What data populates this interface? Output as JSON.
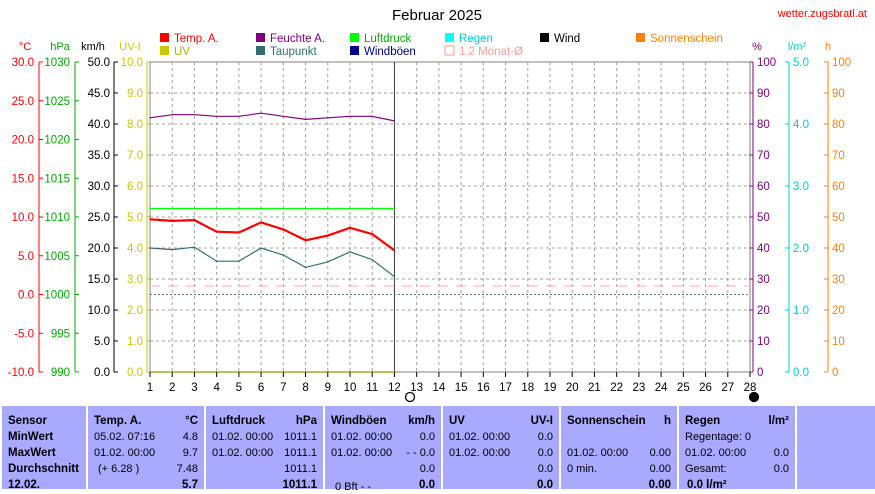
{
  "title": "Februar 2025",
  "source": "wetter.zugsbratl.at",
  "colors": {
    "temp": "#ff0000",
    "humidity": "#800080",
    "pressure": "#00ff00",
    "rain": "#00ffff",
    "wind": "#000000",
    "sunshine": "#ff8000",
    "uv": "#c8c800",
    "dewpoint": "#2f6f6f",
    "gusts": "#00008b",
    "avg": "#ffaaaa",
    "frame": "#808080",
    "panel": "#a9a9ff"
  },
  "legend": [
    {
      "label": "Temp. A.",
      "color": "#ff0000",
      "hollow": false
    },
    {
      "label": "Feuchte A.",
      "color": "#800080",
      "hollow": false
    },
    {
      "label": "Luftdruck",
      "color": "#00ff00",
      "hollow": false
    },
    {
      "label": "Regen",
      "color": "#00ffff",
      "hollow": false
    },
    {
      "label": "Wind",
      "color": "#000000",
      "hollow": false
    },
    {
      "label": "Sonnenschein",
      "color": "#ff8000",
      "hollow": false
    },
    {
      "label": "UV",
      "color": "#c8c800",
      "hollow": false
    },
    {
      "label": "Taupunkt",
      "color": "#2f6f6f",
      "hollow": false
    },
    {
      "label": "Windböen",
      "color": "#00008b",
      "hollow": false
    },
    {
      "label": "1.2 Monat-Ø",
      "color": "#ff9999",
      "hollow": true
    }
  ],
  "axes": {
    "left": [
      {
        "unit": "°C",
        "color": "#ff0000",
        "ticks": [
          "30.0",
          "25.0",
          "20.0",
          "15.0",
          "10.0",
          "5.0",
          "0.0",
          "-5.0",
          "-10.0"
        ]
      },
      {
        "unit": "hPa",
        "color": "#00aa00",
        "ticks": [
          "1030",
          "1025",
          "1020",
          "1015",
          "1010",
          "1005",
          "1000",
          "995",
          "990"
        ]
      },
      {
        "unit": "km/h",
        "color": "#000000",
        "ticks": [
          "50.0",
          "45.0",
          "40.0",
          "35.0",
          "30.0",
          "25.0",
          "20.0",
          "15.0",
          "10.0",
          "5.0",
          "0.0"
        ]
      },
      {
        "unit": "UV-I",
        "color": "#c8c800",
        "ticks": [
          "10.0",
          "9.0",
          "8.0",
          "7.0",
          "6.0",
          "5.0",
          "4.0",
          "3.0",
          "2.0",
          "1.0",
          "0.0"
        ]
      }
    ],
    "right": [
      {
        "unit": "%",
        "color": "#800080",
        "ticks": [
          "100",
          "90",
          "80",
          "70",
          "60",
          "50",
          "40",
          "30",
          "20",
          "10",
          "0"
        ]
      },
      {
        "unit": "l/m²",
        "color": "#00cccc",
        "ticks": [
          "5.0",
          "4.0",
          "3.0",
          "2.0",
          "1.0",
          "0.0"
        ]
      },
      {
        "unit": "h",
        "color": "#ff8000",
        "ticks": [
          "100",
          "90",
          "80",
          "70",
          "60",
          "50",
          "40",
          "30",
          "20",
          "10",
          "0"
        ]
      }
    ],
    "x_ticks": [
      "1",
      "2",
      "3",
      "4",
      "5",
      "6",
      "7",
      "8",
      "9",
      "10",
      "11",
      "12",
      "13",
      "14",
      "15",
      "16",
      "17",
      "18",
      "19",
      "20",
      "21",
      "22",
      "23",
      "24",
      "25",
      "26",
      "27",
      "28"
    ]
  },
  "chart_data": {
    "type": "line",
    "title": "Februar 2025",
    "x": [
      1,
      2,
      3,
      4,
      5,
      6,
      7,
      8,
      9,
      10,
      11,
      12
    ],
    "xlim": [
      1,
      28
    ],
    "series": [
      {
        "name": "Temp. A.",
        "unit": "°C",
        "axis": "left-temp",
        "ylim": [
          -10,
          30
        ],
        "values": [
          9.7,
          9.5,
          9.6,
          8.1,
          8.0,
          9.3,
          8.4,
          7.0,
          7.6,
          8.6,
          7.8,
          5.7
        ]
      },
      {
        "name": "Feuchte A.",
        "unit": "%",
        "axis": "right-humidity",
        "ylim": [
          0,
          100
        ],
        "values": [
          82,
          83,
          83,
          82.5,
          82.5,
          83.5,
          82.5,
          81.5,
          82,
          82.5,
          82.5,
          81
        ]
      },
      {
        "name": "Luftdruck",
        "unit": "hPa",
        "axis": "left-pressure",
        "ylim": [
          990,
          1030
        ],
        "values": [
          1011.1,
          1011.1,
          1011.1,
          1011.1,
          1011.1,
          1011.1,
          1011.1,
          1011.1,
          1011.1,
          1011.1,
          1011.1,
          1011.1
        ]
      },
      {
        "name": "Taupunkt",
        "unit": "°C",
        "axis": "left-temp",
        "ylim": [
          -10,
          30
        ],
        "values": [
          6.0,
          5.8,
          6.1,
          4.3,
          4.3,
          6.0,
          5.1,
          3.5,
          4.2,
          5.5,
          4.5,
          2.3
        ]
      },
      {
        "name": "1.2 Monat-Ø",
        "unit": "°C",
        "axis": "left-temp",
        "ylim": [
          -10,
          30
        ],
        "x": [
          1,
          28
        ],
        "values": [
          1.1,
          1.1
        ],
        "style": "dashed"
      },
      {
        "name": "Regen",
        "unit": "l/m²",
        "axis": "right-rain",
        "ylim": [
          0,
          5
        ],
        "values": [
          0,
          0,
          0,
          0,
          0,
          0,
          0,
          0,
          0,
          0,
          0,
          0
        ]
      },
      {
        "name": "Windböen",
        "unit": "km/h",
        "axis": "left-wind",
        "ylim": [
          0,
          50
        ],
        "values": [
          0,
          0,
          0,
          0,
          0,
          0,
          0,
          0,
          0,
          0,
          0,
          0
        ]
      },
      {
        "name": "UV",
        "unit": "UV-I",
        "axis": "left-uv",
        "ylim": [
          0,
          10
        ],
        "values": [
          0,
          0,
          0,
          0,
          0,
          0,
          0,
          0,
          0,
          0,
          0,
          0
        ]
      }
    ],
    "reference_lines": [
      {
        "value": 1000,
        "axis": "left-pressure",
        "style": "dashed",
        "color": "#4a7aa8"
      }
    ],
    "grid": true
  },
  "stats": {
    "sensor": {
      "header": "Sensor",
      "rows": [
        "MinWert",
        "MaxWert",
        "Durchschnitt",
        "12.02."
      ]
    },
    "temp": {
      "header": "Temp. A.",
      "unit": "°C",
      "min": {
        "date": "05.02.  07:16",
        "value": "4.8"
      },
      "max": {
        "date": "01.02.  00:00",
        "value": "9.7"
      },
      "avg": {
        "note": "(+ 6.28 )",
        "value": "7.48"
      },
      "current": "5.7"
    },
    "pressure": {
      "header": "Luftdruck",
      "unit": "hPa",
      "min": {
        "date": "01.02.  00:00",
        "value": "1011.1"
      },
      "max": {
        "date": "01.02.  00:00",
        "value": "1011.1"
      },
      "avg": {
        "value": "1011.1"
      },
      "current": "1011.1"
    },
    "gusts": {
      "header": "Windböen",
      "unit": "km/h",
      "min": {
        "date": "01.02.  00:00",
        "value": "0.0"
      },
      "max": {
        "date": "01.02.  00:00",
        "value": "- - 0.0"
      },
      "avg": {
        "value": "0.0"
      },
      "current_note": "0 Bft - -",
      "current": "0.0"
    },
    "uv": {
      "header": "UV",
      "unit": "UV-I",
      "min": {
        "date": "01.02.  00:00",
        "value": "0.0"
      },
      "max": {
        "date": "01.02.  00:00",
        "value": "0.0"
      },
      "avg": {
        "value": "0.0"
      },
      "current": "0.0"
    },
    "sunshine": {
      "header": "Sonnenschein",
      "unit": "h",
      "row2": {
        "date": "01.02.  00:00",
        "value": "0.00"
      },
      "row3": {
        "note": "0 min.",
        "value": "0.00"
      },
      "current": "0.00"
    },
    "rain": {
      "header": "Regen",
      "unit": "l/m²",
      "row1": "Regentage: 0",
      "row2": {
        "date": "01.02.  00:00",
        "value": "0.0"
      },
      "row3": {
        "note": "Gesamt:",
        "value": "0.0"
      },
      "current": "0.0 l/m²"
    }
  }
}
